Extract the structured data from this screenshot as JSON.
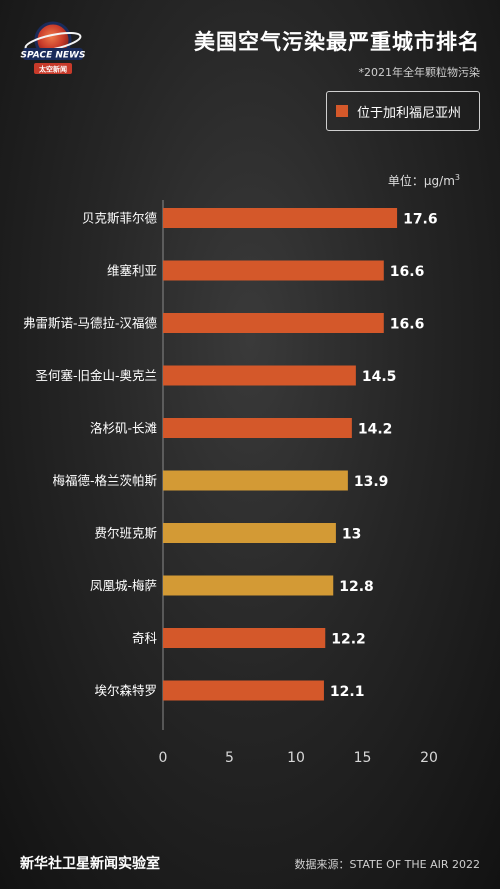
{
  "header": {
    "title": "美国空气污染最严重城市排名",
    "subtitle": "*2021年全年颗粒物污染",
    "legend_label": "位于加利福尼亚州",
    "unit_prefix": "单位：μg/m",
    "unit_sup": "3"
  },
  "logo": {
    "text": "SPACE NEWS",
    "subtext": "太空新闻"
  },
  "colors": {
    "california": "#d4582a",
    "other": "#d39a35"
  },
  "chart_data": {
    "type": "bar",
    "orientation": "horizontal",
    "categories": [
      "贝克斯菲尔德",
      "维塞利亚",
      "弗雷斯诺-马德拉-汉福德",
      "圣何塞-旧金山-奥克兰",
      "洛杉矶-长滩",
      "梅福德-格兰茨帕斯",
      "费尔班克斯",
      "凤凰城-梅萨",
      "奇科",
      "埃尔森特罗"
    ],
    "values": [
      17.6,
      16.6,
      16.6,
      14.5,
      14.2,
      13.9,
      13,
      12.8,
      12.2,
      12.1
    ],
    "value_labels": [
      "17.6",
      "16.6",
      "16.6",
      "14.5",
      "14.2",
      "13.9",
      "13",
      "12.8",
      "12.2",
      "12.1"
    ],
    "in_california": [
      true,
      true,
      true,
      true,
      true,
      false,
      false,
      false,
      true,
      true
    ],
    "xlim": [
      0,
      20
    ],
    "xticks": [
      "0",
      "5",
      "10",
      "15",
      "20"
    ]
  },
  "footer": {
    "left": "新华社卫星新闻实验室",
    "right": "数据来源：STATE OF THE AIR 2022"
  }
}
